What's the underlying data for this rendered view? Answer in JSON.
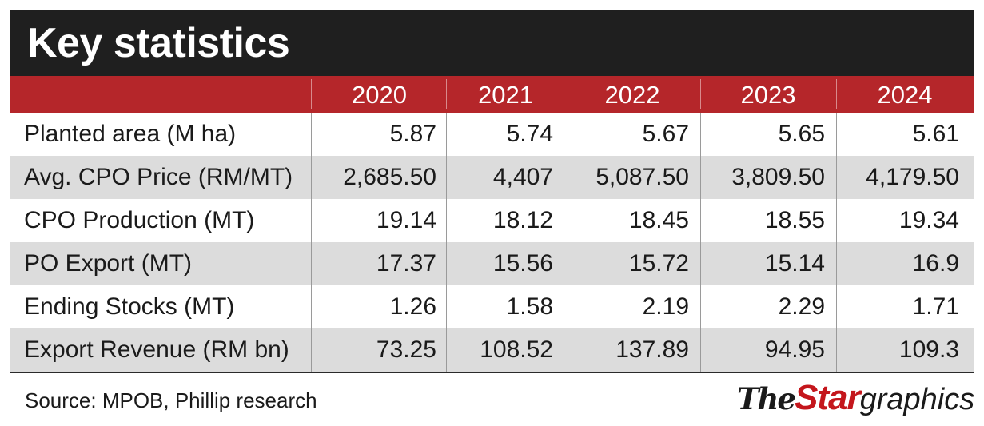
{
  "chart_data": {
    "type": "table",
    "title": "Key statistics",
    "columns": [
      "2020",
      "2021",
      "2022",
      "2023",
      "2024"
    ],
    "rows": [
      {
        "label": "Planted area (M ha)",
        "values": [
          "5.87",
          "5.74",
          "5.67",
          "5.65",
          "5.61"
        ]
      },
      {
        "label": "Avg. CPO Price (RM/MT)",
        "values": [
          "2,685.50",
          "4,407",
          "5,087.50",
          "3,809.50",
          "4,179.50"
        ]
      },
      {
        "label": "CPO Production (MT)",
        "values": [
          "19.14",
          "18.12",
          "18.45",
          "18.55",
          "19.34"
        ]
      },
      {
        "label": "PO Export (MT)",
        "values": [
          "17.37",
          "15.56",
          "15.72",
          "15.14",
          "16.9"
        ]
      },
      {
        "label": "Ending Stocks (MT)",
        "values": [
          "1.26",
          "1.58",
          "2.19",
          "2.29",
          "1.71"
        ]
      },
      {
        "label": "Export Revenue (RM bn)",
        "values": [
          "73.25",
          "108.52",
          "137.89",
          "94.95",
          "109.3"
        ]
      }
    ]
  },
  "source": "Source: MPOB, Phillip research",
  "logo": {
    "part1": "The",
    "part2": "Star",
    "part3": "graphics"
  },
  "colors": {
    "title_bg": "#1f1f1f",
    "header_bg": "#b5262a",
    "stripe": "#dcdcdc"
  }
}
